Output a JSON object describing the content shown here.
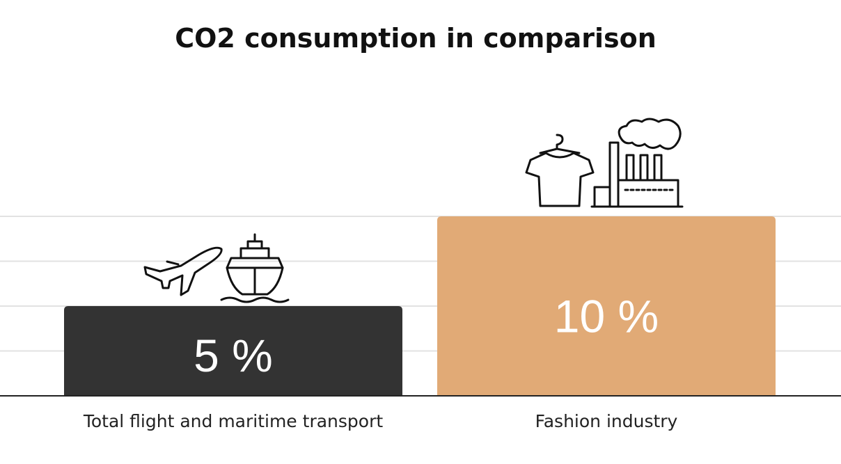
{
  "chart_data": {
    "type": "bar",
    "title": "CO2 consumption in comparison",
    "categories": [
      "Total flight and maritime transport",
      "Fashion industry"
    ],
    "values": [
      5,
      10
    ],
    "value_labels": [
      "5 %",
      "10 %"
    ],
    "ylim": [
      0,
      10
    ],
    "grid": true,
    "colors": [
      "#333333",
      "#e1aa76"
    ],
    "label_color": "#ffffff",
    "icons": [
      [
        "airplane-icon",
        "ship-icon"
      ],
      [
        "t-shirt-icon",
        "factory-icon"
      ]
    ]
  }
}
